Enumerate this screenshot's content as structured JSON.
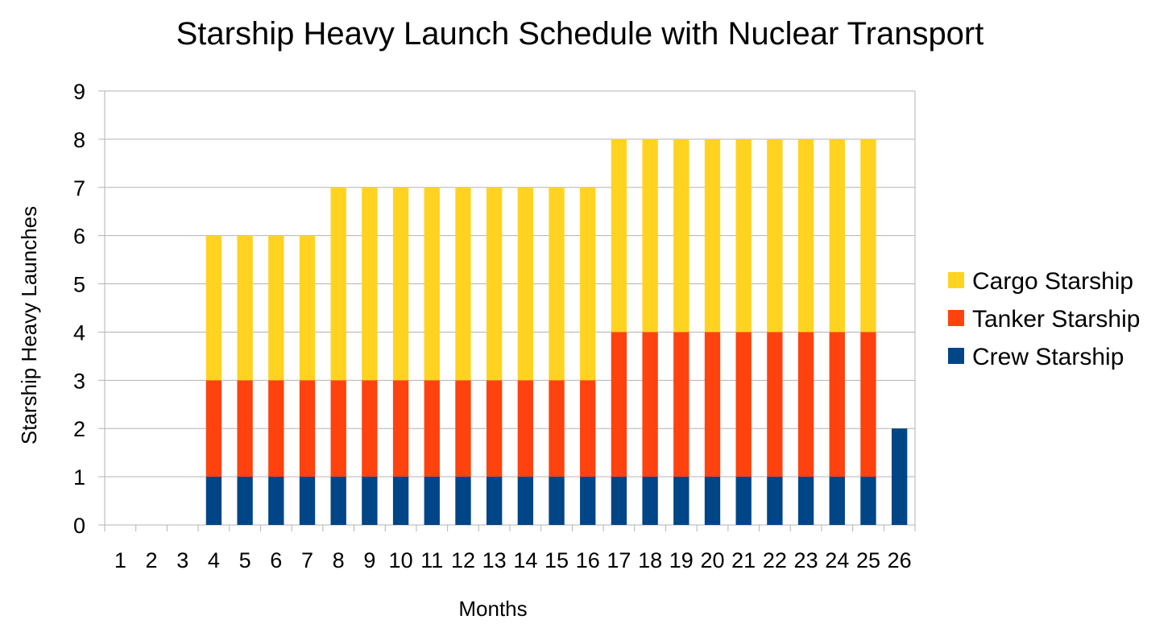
{
  "chart_data": {
    "type": "bar",
    "stacked": true,
    "title": "Starship Heavy Launch Schedule with Nuclear Transport",
    "xlabel": "Months",
    "ylabel": "Starship Heavy Launches",
    "ylim": [
      0,
      9
    ],
    "yticks": [
      0,
      1,
      2,
      3,
      4,
      5,
      6,
      7,
      8,
      9
    ],
    "grid": true,
    "legend_position": "right",
    "categories": [
      "1",
      "2",
      "3",
      "4",
      "5",
      "6",
      "7",
      "8",
      "9",
      "10",
      "11",
      "12",
      "13",
      "14",
      "15",
      "16",
      "17",
      "18",
      "19",
      "20",
      "21",
      "22",
      "23",
      "24",
      "25",
      "26"
    ],
    "series": [
      {
        "name": "Crew Starship",
        "color": "#004586",
        "values": [
          0,
          0,
          0,
          1,
          1,
          1,
          1,
          1,
          1,
          1,
          1,
          1,
          1,
          1,
          1,
          1,
          1,
          1,
          1,
          1,
          1,
          1,
          1,
          1,
          1,
          2
        ]
      },
      {
        "name": "Tanker Starship",
        "color": "#ff420e",
        "values": [
          0,
          0,
          0,
          2,
          2,
          2,
          2,
          2,
          2,
          2,
          2,
          2,
          2,
          2,
          2,
          2,
          3,
          3,
          3,
          3,
          3,
          3,
          3,
          3,
          3,
          0
        ]
      },
      {
        "name": "Cargo Starship",
        "color": "#ffd320",
        "values": [
          0,
          0,
          0,
          3,
          3,
          3,
          3,
          4,
          4,
          4,
          4,
          4,
          4,
          4,
          4,
          4,
          4,
          4,
          4,
          4,
          4,
          4,
          4,
          4,
          4,
          0
        ]
      }
    ]
  }
}
